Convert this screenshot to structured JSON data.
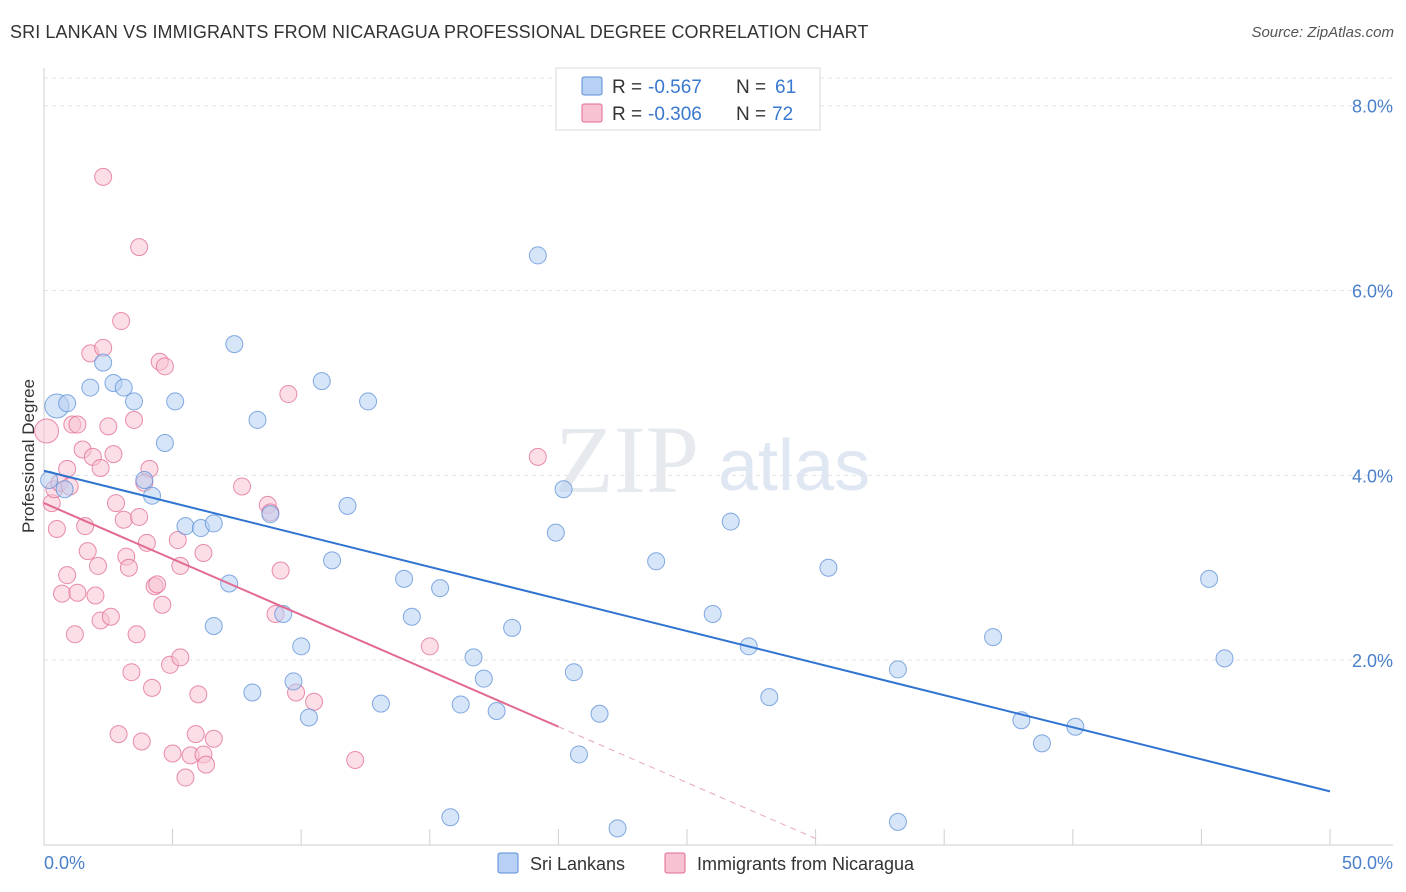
{
  "title": "SRI LANKAN VS IMMIGRANTS FROM NICARAGUA PROFESSIONAL DEGREE CORRELATION CHART",
  "source": "Source: ZipAtlas.com",
  "watermark": {
    "zip": "ZIP",
    "atlas": "atlas"
  },
  "legend_top": [
    {
      "r_label": "R =",
      "r_value": "-0.567",
      "n_label": "N =",
      "n_value": "61",
      "color": "#5b8fd8",
      "fill": "#b7d0f3"
    },
    {
      "r_label": "R =",
      "r_value": "-0.306",
      "n_label": "N =",
      "n_value": "72",
      "color": "#e26a91",
      "fill": "#f7c3d2"
    }
  ],
  "chart_data": {
    "type": "scatter",
    "title": "SRI LANKAN VS IMMIGRANTS FROM NICARAGUA PROFESSIONAL DEGREE CORRELATION CHART",
    "xlabel": "",
    "ylabel": "Professional Degree",
    "xlim": [
      0,
      50
    ],
    "ylim": [
      0,
      8.3
    ],
    "x_tick_labels": [
      "0.0%",
      "50.0%"
    ],
    "y_ticks": [
      2,
      4,
      6,
      8
    ],
    "y_tick_labels": [
      "2.0%",
      "4.0%",
      "6.0%",
      "8.0%"
    ],
    "legend_position": "top-center",
    "series": [
      {
        "name": "Sri Lankans",
        "color": "#5b8fd8",
        "fill": "#b7d0f3",
        "points": [
          [
            0.2,
            3.95
          ],
          [
            0.5,
            4.75
          ],
          [
            0.9,
            4.78
          ],
          [
            1.8,
            4.95
          ],
          [
            2.3,
            5.22
          ],
          [
            2.7,
            5.0
          ],
          [
            3.1,
            4.95
          ],
          [
            3.5,
            4.8
          ],
          [
            3.9,
            3.95
          ],
          [
            4.2,
            3.78
          ],
          [
            4.7,
            4.35
          ],
          [
            5.1,
            4.8
          ],
          [
            5.5,
            3.45
          ],
          [
            6.1,
            3.43
          ],
          [
            6.6,
            2.37
          ],
          [
            6.6,
            3.48
          ],
          [
            7.2,
            2.83
          ],
          [
            7.4,
            5.42
          ],
          [
            8.1,
            1.65
          ],
          [
            8.3,
            4.6
          ],
          [
            8.8,
            3.58
          ],
          [
            9.3,
            2.5
          ],
          [
            9.7,
            1.77
          ],
          [
            10.0,
            2.15
          ],
          [
            10.3,
            1.38
          ],
          [
            10.8,
            5.02
          ],
          [
            11.2,
            3.08
          ],
          [
            11.8,
            3.67
          ],
          [
            12.6,
            4.8
          ],
          [
            13.1,
            1.53
          ],
          [
            14.0,
            2.88
          ],
          [
            14.3,
            2.47
          ],
          [
            15.4,
            2.78
          ],
          [
            15.8,
            0.3
          ],
          [
            16.2,
            1.52
          ],
          [
            16.7,
            2.03
          ],
          [
            17.1,
            1.8
          ],
          [
            17.6,
            1.45
          ],
          [
            18.2,
            2.35
          ],
          [
            19.2,
            6.38
          ],
          [
            19.9,
            3.38
          ],
          [
            20.2,
            3.85
          ],
          [
            20.6,
            1.87
          ],
          [
            20.8,
            0.98
          ],
          [
            21.6,
            1.42
          ],
          [
            22.3,
            0.18
          ],
          [
            23.8,
            3.07
          ],
          [
            26.0,
            2.5
          ],
          [
            26.7,
            3.5
          ],
          [
            27.4,
            2.15
          ],
          [
            28.2,
            1.6
          ],
          [
            30.5,
            3.0
          ],
          [
            33.2,
            0.25
          ],
          [
            33.2,
            1.9
          ],
          [
            36.9,
            2.25
          ],
          [
            38.0,
            1.35
          ],
          [
            38.8,
            1.1
          ],
          [
            40.1,
            1.28
          ],
          [
            45.3,
            2.88
          ],
          [
            45.9,
            2.02
          ],
          [
            0.8,
            3.85
          ]
        ],
        "trend": {
          "x_start": 0.0,
          "y_start": 4.05,
          "x_end": 50.0,
          "y_end": 0.58
        }
      },
      {
        "name": "Immigrants from Nicaragua",
        "color": "#e26a91",
        "fill": "#f7c3d2",
        "points": [
          [
            0.1,
            4.48
          ],
          [
            0.3,
            3.7
          ],
          [
            0.4,
            3.85
          ],
          [
            0.5,
            3.42
          ],
          [
            0.6,
            3.92
          ],
          [
            0.7,
            2.72
          ],
          [
            0.9,
            4.07
          ],
          [
            0.9,
            2.92
          ],
          [
            1.0,
            3.88
          ],
          [
            1.1,
            4.55
          ],
          [
            1.2,
            2.28
          ],
          [
            1.3,
            2.73
          ],
          [
            1.3,
            4.55
          ],
          [
            1.5,
            4.28
          ],
          [
            1.6,
            3.45
          ],
          [
            1.7,
            3.18
          ],
          [
            1.8,
            5.32
          ],
          [
            1.9,
            4.2
          ],
          [
            2.0,
            2.7
          ],
          [
            2.1,
            3.02
          ],
          [
            2.2,
            4.08
          ],
          [
            2.2,
            2.43
          ],
          [
            2.3,
            7.23
          ],
          [
            2.3,
            5.38
          ],
          [
            2.5,
            4.53
          ],
          [
            2.6,
            2.47
          ],
          [
            2.7,
            4.23
          ],
          [
            2.8,
            3.7
          ],
          [
            2.9,
            1.2
          ],
          [
            3.0,
            5.67
          ],
          [
            3.1,
            3.52
          ],
          [
            3.2,
            3.12
          ],
          [
            3.3,
            3.0
          ],
          [
            3.4,
            1.87
          ],
          [
            3.5,
            4.6
          ],
          [
            3.6,
            2.28
          ],
          [
            3.7,
            6.47
          ],
          [
            3.7,
            3.55
          ],
          [
            3.8,
            1.12
          ],
          [
            4.0,
            3.27
          ],
          [
            4.1,
            4.07
          ],
          [
            4.2,
            1.7
          ],
          [
            4.3,
            2.8
          ],
          [
            4.4,
            2.82
          ],
          [
            4.5,
            5.23
          ],
          [
            4.6,
            2.6
          ],
          [
            4.7,
            5.18
          ],
          [
            4.9,
            1.95
          ],
          [
            5.0,
            0.99
          ],
          [
            5.2,
            3.3
          ],
          [
            5.3,
            2.03
          ],
          [
            5.3,
            3.02
          ],
          [
            5.5,
            0.73
          ],
          [
            5.7,
            0.97
          ],
          [
            5.9,
            1.2
          ],
          [
            6.0,
            1.63
          ],
          [
            6.2,
            3.16
          ],
          [
            6.2,
            0.98
          ],
          [
            6.3,
            0.87
          ],
          [
            6.6,
            1.15
          ],
          [
            7.7,
            3.88
          ],
          [
            8.7,
            3.68
          ],
          [
            8.8,
            3.6
          ],
          [
            9.0,
            2.5
          ],
          [
            9.2,
            2.97
          ],
          [
            9.5,
            4.88
          ],
          [
            9.8,
            1.65
          ],
          [
            10.5,
            1.55
          ],
          [
            12.1,
            0.92
          ],
          [
            15.0,
            2.15
          ],
          [
            19.2,
            4.2
          ],
          [
            3.9,
            3.92
          ]
        ],
        "trend": {
          "x_start": 0.0,
          "y_start": 3.7,
          "x_end": 20.0,
          "y_end": 1.28
        },
        "trend_extension": {
          "x_start": 20.0,
          "y_start": 1.28,
          "x_end": 30.0,
          "y_end": 0.07
        }
      }
    ]
  },
  "bottom_legend": [
    {
      "label": "Sri Lankans",
      "color": "#5b8fd8",
      "fill": "#b7d0f3"
    },
    {
      "label": "Immigrants from Nicaragua",
      "color": "#e26a91",
      "fill": "#f7c3d2"
    }
  ]
}
